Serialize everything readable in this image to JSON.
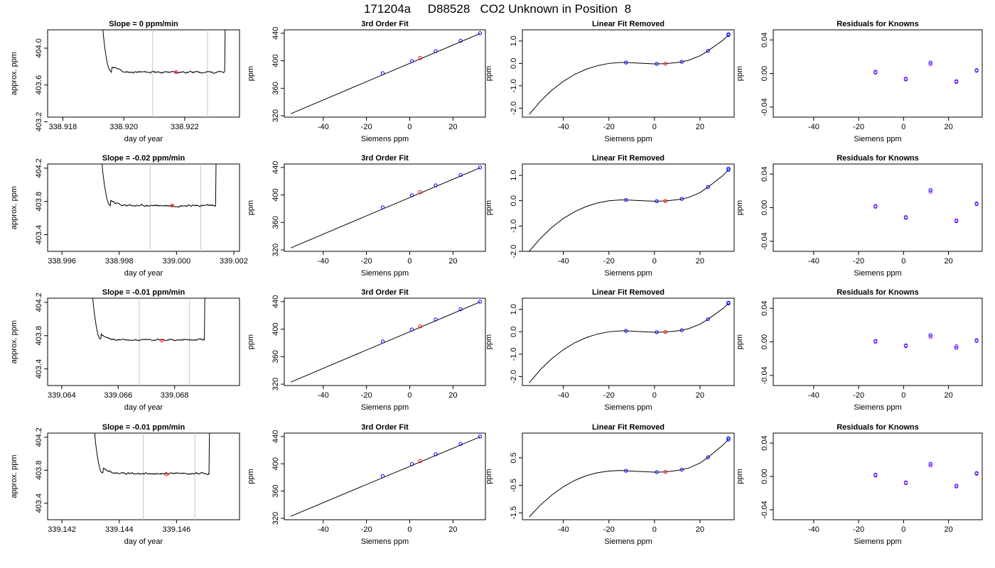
{
  "figure": {
    "title": "171204a     D88528   CO2 Unknown in Position  8"
  },
  "colors": {
    "trace": "#000000",
    "cursor": "#c8c8c8",
    "known": "#0000ff",
    "unknown": "#ff0000",
    "residual_a": "#0000ff",
    "residual_b": "#a020f0",
    "fit_line": "#000000"
  },
  "chart_data": [
    {
      "type": "line",
      "row": 0,
      "col": 0,
      "title": "Slope =  0  ppm/min",
      "xlabel": "day of year",
      "ylabel": "approx. ppm",
      "xlim": [
        338.9175,
        338.9238
      ],
      "ylim": [
        403.25,
        404.2
      ],
      "xticks": [
        338.918,
        338.92,
        338.922
      ],
      "xtick_labels": [
        "338.918",
        "338.920",
        "338.922"
      ],
      "yticks": [
        403.2,
        403.6,
        404.0
      ],
      "ytick_labels": [
        "403.2",
        "403.6",
        "404.0"
      ],
      "cursors": [
        338.92095,
        338.92275
      ],
      "trace": {
        "t_start": 338.91908,
        "t_end": 338.92338,
        "base": 403.74,
        "noise": 0.006,
        "seed": 11
      },
      "unknown_point": [
        338.92172,
        403.74
      ]
    },
    {
      "type": "scatter",
      "row": 0,
      "col": 1,
      "title": "3rd Order Fit",
      "xlabel": "Siemens ppm",
      "ylabel": "ppm",
      "xlim": [
        -58,
        35
      ],
      "ylim": [
        318,
        445
      ],
      "xticks": [
        -40,
        -20,
        0,
        20
      ],
      "xtick_labels": [
        "-40",
        "-20",
        "0",
        "20"
      ],
      "yticks": [
        320,
        360,
        400,
        440
      ],
      "ytick_labels": [
        "320",
        "360",
        "400",
        "440"
      ],
      "line": {
        "x": [
          -55,
          32.5
        ],
        "y": [
          323,
          439.5
        ]
      },
      "knowns": {
        "x": [
          -12.5,
          1,
          12,
          23.5,
          32.5
        ],
        "y": [
          382,
          399.5,
          414,
          429,
          440
        ]
      },
      "unknown": {
        "x": [
          4.8
        ],
        "y": [
          404
        ]
      }
    },
    {
      "type": "line",
      "row": 0,
      "col": 2,
      "title": "Linear Fit Removed",
      "xlabel": "Siemens ppm",
      "ylabel": "ppm",
      "xlim": [
        -58,
        35
      ],
      "ylim": [
        -2.4,
        1.5
      ],
      "xticks": [
        -40,
        -20,
        0,
        20
      ],
      "xtick_labels": [
        "-40",
        "-20",
        "0",
        "20"
      ],
      "yticks": [
        -2.0,
        -1.0,
        0.0,
        1.0
      ],
      "ytick_labels": [
        "-2.0",
        "-1.0",
        "0.0",
        "1.0"
      ],
      "curve": {
        "x": [
          -55,
          -50,
          -45,
          -40,
          -35,
          -30,
          -25,
          -20,
          -15,
          -12.5,
          -10,
          -5,
          0,
          1,
          5,
          10,
          12,
          15,
          20,
          23.5,
          25,
          30,
          32.5
        ],
        "y": [
          -2.28,
          -1.68,
          -1.19,
          -0.8,
          -0.49,
          -0.26,
          -0.1,
          0.0,
          0.04,
          0.04,
          0.03,
          0.0,
          -0.02,
          -0.02,
          -0.01,
          0.04,
          0.07,
          0.14,
          0.34,
          0.56,
          0.67,
          1.03,
          1.27
        ]
      },
      "knowns": {
        "x": [
          -12.5,
          1,
          12,
          23.5,
          32.5,
          32.5
        ],
        "y": [
          0.04,
          -0.02,
          0.07,
          0.56,
          1.27,
          1.3
        ]
      },
      "unknown": {
        "x": [
          4.8
        ],
        "y": [
          -0.01
        ]
      }
    },
    {
      "type": "scatter",
      "row": 0,
      "col": 3,
      "title": "Residuals for Knowns",
      "xlabel": "Siemens ppm",
      "ylabel": "ppm",
      "xlim": [
        -58,
        35
      ],
      "ylim": [
        -0.052,
        0.052
      ],
      "xticks": [
        -40,
        -20,
        0,
        20
      ],
      "xtick_labels": [
        "-40",
        "-20",
        "0",
        "20"
      ],
      "yticks": [
        -0.04,
        0.0,
        0.04
      ],
      "ytick_labels": [
        "-0.04",
        "0.00",
        "0.04"
      ],
      "series_a": {
        "x": [
          -12.5,
          1,
          12,
          23.5,
          32.5
        ],
        "y": [
          0.002,
          -0.007,
          0.013,
          -0.01,
          0.004
        ]
      },
      "series_b": {
        "x": [
          -12.5,
          1,
          12,
          23.5,
          32.5
        ],
        "y": [
          0.001,
          -0.006,
          0.011,
          -0.009,
          0.003
        ]
      }
    },
    {
      "type": "line",
      "row": 1,
      "col": 0,
      "title": "Slope =  -0.02  ppm/min",
      "xlabel": "day of year",
      "ylabel": "approx. ppm",
      "xlim": [
        338.9955,
        339.0022
      ],
      "ylim": [
        403.2,
        404.25
      ],
      "xticks": [
        338.996,
        338.998,
        339.0,
        339.002
      ],
      "xtick_labels": [
        "338.996",
        "338.998",
        "339.000",
        "339.002"
      ],
      "yticks": [
        403.4,
        403.8,
        404.2
      ],
      "ytick_labels": [
        "403.4",
        "403.8",
        "404.2"
      ],
      "cursors": [
        338.99908,
        339.00085
      ],
      "trace": {
        "t_start": 338.99718,
        "t_end": 339.00143,
        "base": 403.75,
        "noise": 0.007,
        "seed": 23
      },
      "unknown_point": [
        338.99985,
        403.75
      ]
    },
    {
      "type": "scatter",
      "row": 1,
      "col": 1,
      "title": "3rd Order Fit",
      "xlabel": "Siemens ppm",
      "ylabel": "ppm",
      "xlim": [
        -58,
        35
      ],
      "ylim": [
        318,
        445
      ],
      "xticks": [
        -40,
        -20,
        0,
        20
      ],
      "xtick_labels": [
        "-40",
        "-20",
        "0",
        "20"
      ],
      "yticks": [
        320,
        360,
        400,
        440
      ],
      "ytick_labels": [
        "320",
        "360",
        "400",
        "440"
      ],
      "line": {
        "x": [
          -55,
          32.5
        ],
        "y": [
          323,
          439.5
        ]
      },
      "knowns": {
        "x": [
          -12.5,
          1,
          12,
          23.5,
          32.5
        ],
        "y": [
          382,
          399.5,
          414,
          429,
          440
        ]
      },
      "unknown": {
        "x": [
          4.8
        ],
        "y": [
          404
        ]
      }
    },
    {
      "type": "line",
      "row": 1,
      "col": 2,
      "title": "Linear Fit Removed",
      "xlabel": "Siemens ppm",
      "ylabel": "ppm",
      "xlim": [
        -58,
        35
      ],
      "ylim": [
        -2.0,
        1.45
      ],
      "xticks": [
        -40,
        -20,
        0,
        20
      ],
      "xtick_labels": [
        "-40",
        "-20",
        "0",
        "20"
      ],
      "yticks": [
        -2.0,
        -1.0,
        0.0,
        1.0
      ],
      "ytick_labels": [
        "-2.0",
        "-1.0",
        "0.0",
        "1.0"
      ],
      "curve": {
        "x": [
          -55,
          -50,
          -45,
          -40,
          -35,
          -30,
          -25,
          -20,
          -15,
          -12.5,
          -10,
          -5,
          0,
          1,
          5,
          10,
          12,
          15,
          20,
          23.5,
          25,
          30,
          32.5
        ],
        "y": [
          -2.0,
          -1.48,
          -1.05,
          -0.7,
          -0.43,
          -0.23,
          -0.09,
          0.0,
          0.03,
          0.03,
          0.02,
          0.0,
          -0.02,
          -0.02,
          -0.01,
          0.04,
          0.07,
          0.13,
          0.32,
          0.54,
          0.64,
          0.99,
          1.22
        ]
      },
      "knowns": {
        "x": [
          -12.5,
          1,
          12,
          23.5,
          32.5,
          32.5
        ],
        "y": [
          0.03,
          -0.02,
          0.07,
          0.54,
          1.22,
          1.27
        ]
      },
      "unknown": {
        "x": [
          4.8
        ],
        "y": [
          -0.01
        ]
      }
    },
    {
      "type": "scatter",
      "row": 1,
      "col": 3,
      "title": "Residuals for Knowns",
      "xlabel": "Siemens ppm",
      "ylabel": "ppm",
      "xlim": [
        -58,
        35
      ],
      "ylim": [
        -0.052,
        0.052
      ],
      "xticks": [
        -40,
        -20,
        0,
        20
      ],
      "xtick_labels": [
        "-40",
        "-20",
        "0",
        "20"
      ],
      "yticks": [
        -0.04,
        0.0,
        0.04
      ],
      "ytick_labels": [
        "-0.04",
        "0.00",
        "0.04"
      ],
      "series_a": {
        "x": [
          -12.5,
          1,
          12,
          23.5,
          32.5
        ],
        "y": [
          0.002,
          -0.012,
          0.021,
          -0.016,
          0.005
        ]
      },
      "series_b": {
        "x": [
          -12.5,
          1,
          12,
          23.5,
          32.5
        ],
        "y": [
          0.001,
          -0.011,
          0.019,
          -0.015,
          0.004
        ]
      }
    },
    {
      "type": "line",
      "row": 2,
      "col": 0,
      "title": "Slope =  -0.01  ppm/min",
      "xlabel": "day of year",
      "ylabel": "approx. ppm",
      "xlim": [
        339.0635,
        339.0703
      ],
      "ylim": [
        403.2,
        404.25
      ],
      "xticks": [
        339.064,
        339.066,
        339.068
      ],
      "xtick_labels": [
        "339.064",
        "339.066",
        "339.068"
      ],
      "yticks": [
        403.4,
        403.8,
        404.2
      ],
      "ytick_labels": [
        "403.4",
        "403.8",
        "404.2"
      ],
      "cursors": [
        339.06675,
        339.06853
      ],
      "trace": {
        "t_start": 339.06488,
        "t_end": 339.06912,
        "base": 403.75,
        "noise": 0.006,
        "seed": 37
      },
      "unknown_point": [
        339.06755,
        403.74
      ]
    },
    {
      "type": "scatter",
      "row": 2,
      "col": 1,
      "title": "3rd Order Fit",
      "xlabel": "Siemens ppm",
      "ylabel": "ppm",
      "xlim": [
        -58,
        35
      ],
      "ylim": [
        318,
        445
      ],
      "xticks": [
        -40,
        -20,
        0,
        20
      ],
      "xtick_labels": [
        "-40",
        "-20",
        "0",
        "20"
      ],
      "yticks": [
        320,
        360,
        400,
        440
      ],
      "ytick_labels": [
        "320",
        "360",
        "400",
        "440"
      ],
      "line": {
        "x": [
          -55,
          32.5
        ],
        "y": [
          323,
          439.5
        ]
      },
      "knowns": {
        "x": [
          -12.5,
          1,
          12,
          23.5,
          32.5
        ],
        "y": [
          382,
          399.5,
          414,
          429,
          440
        ]
      },
      "unknown": {
        "x": [
          4.8
        ],
        "y": [
          404
        ]
      }
    },
    {
      "type": "line",
      "row": 2,
      "col": 2,
      "title": "Linear Fit Removed",
      "xlabel": "Siemens ppm",
      "ylabel": "ppm",
      "xlim": [
        -58,
        35
      ],
      "ylim": [
        -2.4,
        1.5
      ],
      "xticks": [
        -40,
        -20,
        0,
        20
      ],
      "xtick_labels": [
        "-40",
        "-20",
        "0",
        "20"
      ],
      "yticks": [
        -2.0,
        -1.0,
        0.0,
        1.0
      ],
      "ytick_labels": [
        "-2.0",
        "-1.0",
        "0.0",
        "1.0"
      ],
      "curve": {
        "x": [
          -55,
          -50,
          -45,
          -40,
          -35,
          -30,
          -25,
          -20,
          -15,
          -12.5,
          -10,
          -5,
          0,
          1,
          5,
          10,
          12,
          15,
          20,
          23.5,
          25,
          30,
          32.5
        ],
        "y": [
          -2.28,
          -1.68,
          -1.19,
          -0.8,
          -0.49,
          -0.26,
          -0.1,
          0.0,
          0.04,
          0.04,
          0.03,
          0.0,
          -0.02,
          -0.02,
          -0.01,
          0.04,
          0.07,
          0.14,
          0.34,
          0.56,
          0.67,
          1.03,
          1.27
        ]
      },
      "knowns": {
        "x": [
          -12.5,
          1,
          12,
          23.5,
          32.5,
          32.5
        ],
        "y": [
          0.04,
          -0.02,
          0.07,
          0.56,
          1.27,
          1.3
        ]
      },
      "unknown": {
        "x": [
          4.8
        ],
        "y": [
          -0.01
        ]
      }
    },
    {
      "type": "scatter",
      "row": 2,
      "col": 3,
      "title": "Residuals for Knowns",
      "xlabel": "Siemens ppm",
      "ylabel": "ppm",
      "xlim": [
        -58,
        35
      ],
      "ylim": [
        -0.052,
        0.052
      ],
      "xticks": [
        -40,
        -20,
        0,
        20
      ],
      "xtick_labels": [
        "-40",
        "-20",
        "0",
        "20"
      ],
      "yticks": [
        -0.04,
        0.0,
        0.04
      ],
      "ytick_labels": [
        "-0.04",
        "0.00",
        "0.04"
      ],
      "series_a": {
        "x": [
          -12.5,
          1,
          12,
          23.5,
          32.5
        ],
        "y": [
          0.001,
          -0.005,
          0.008,
          -0.007,
          0.002
        ]
      },
      "series_b": {
        "x": [
          -12.5,
          1,
          12,
          23.5,
          32.5
        ],
        "y": [
          0.0,
          -0.004,
          0.006,
          -0.005,
          0.001
        ]
      }
    },
    {
      "type": "line",
      "row": 3,
      "col": 0,
      "title": "Slope =  -0.01  ppm/min",
      "xlabel": "day of year",
      "ylabel": "approx. ppm",
      "xlim": [
        339.1415,
        339.1482
      ],
      "ylim": [
        403.2,
        404.25
      ],
      "xticks": [
        339.142,
        339.144,
        339.146
      ],
      "xtick_labels": [
        "339.142",
        "339.144",
        "339.146"
      ],
      "yticks": [
        403.4,
        403.8,
        404.2
      ],
      "ytick_labels": [
        "403.4",
        "403.8",
        "404.2"
      ],
      "cursors": [
        339.14484,
        339.14664
      ],
      "trace": {
        "t_start": 339.14292,
        "t_end": 339.1472,
        "base": 403.76,
        "noise": 0.007,
        "seed": 53
      },
      "unknown_point": [
        339.14565,
        403.75
      ]
    },
    {
      "type": "scatter",
      "row": 3,
      "col": 1,
      "title": "3rd Order Fit",
      "xlabel": "Siemens ppm",
      "ylabel": "ppm",
      "xlim": [
        -58,
        35
      ],
      "ylim": [
        318,
        445
      ],
      "xticks": [
        -40,
        -20,
        0,
        20
      ],
      "xtick_labels": [
        "-40",
        "-20",
        "0",
        "20"
      ],
      "yticks": [
        320,
        360,
        400,
        440
      ],
      "ytick_labels": [
        "320",
        "360",
        "400",
        "440"
      ],
      "line": {
        "x": [
          -55,
          32.5
        ],
        "y": [
          323,
          439.5
        ]
      },
      "knowns": {
        "x": [
          -12.5,
          1,
          12,
          23.5,
          32.5
        ],
        "y": [
          382,
          399.5,
          414,
          429,
          440
        ]
      },
      "unknown": {
        "x": [
          4.8
        ],
        "y": [
          404
        ]
      }
    },
    {
      "type": "line",
      "row": 3,
      "col": 2,
      "title": "Linear Fit Removed",
      "xlabel": "Siemens ppm",
      "ylabel": "ppm",
      "xlim": [
        -58,
        35
      ],
      "ylim": [
        -1.75,
        1.4
      ],
      "xticks": [
        -40,
        -20,
        0,
        20
      ],
      "xtick_labels": [
        "-40",
        "-20",
        "0",
        "20"
      ],
      "yticks": [
        -1.5,
        -0.5,
        0.5
      ],
      "ytick_labels": [
        "-1.5",
        "-0.5",
        "0.5"
      ],
      "curve": {
        "x": [
          -55,
          -50,
          -45,
          -40,
          -35,
          -30,
          -25,
          -20,
          -15,
          -12.5,
          -10,
          -5,
          0,
          1,
          5,
          10,
          12,
          15,
          20,
          23.5,
          25,
          30,
          32.5
        ],
        "y": [
          -1.65,
          -1.21,
          -0.85,
          -0.55,
          -0.32,
          -0.15,
          -0.04,
          0.02,
          0.04,
          0.03,
          0.02,
          0.0,
          -0.02,
          -0.02,
          -0.01,
          0.04,
          0.07,
          0.13,
          0.31,
          0.52,
          0.62,
          0.96,
          1.17
        ]
      },
      "knowns": {
        "x": [
          -12.5,
          1,
          12,
          23.5,
          32.5,
          32.5
        ],
        "y": [
          0.03,
          -0.02,
          0.07,
          0.52,
          1.17,
          1.22
        ]
      },
      "unknown": {
        "x": [
          4.8
        ],
        "y": [
          -0.01
        ]
      }
    },
    {
      "type": "scatter",
      "row": 3,
      "col": 3,
      "title": "Residuals for Knowns",
      "xlabel": "Siemens ppm",
      "ylabel": "ppm",
      "xlim": [
        -58,
        35
      ],
      "ylim": [
        -0.052,
        0.052
      ],
      "xticks": [
        -40,
        -20,
        0,
        20
      ],
      "xtick_labels": [
        "-40",
        "-20",
        "0",
        "20"
      ],
      "yticks": [
        -0.04,
        0.0,
        0.04
      ],
      "ytick_labels": [
        "-0.04",
        "0.00",
        "0.04"
      ],
      "series_a": {
        "x": [
          -12.5,
          1,
          12,
          23.5,
          32.5
        ],
        "y": [
          0.002,
          -0.008,
          0.015,
          -0.012,
          0.004
        ]
      },
      "series_b": {
        "x": [
          -12.5,
          1,
          12,
          23.5,
          32.5
        ],
        "y": [
          0.001,
          -0.007,
          0.013,
          -0.011,
          0.003
        ]
      }
    }
  ]
}
